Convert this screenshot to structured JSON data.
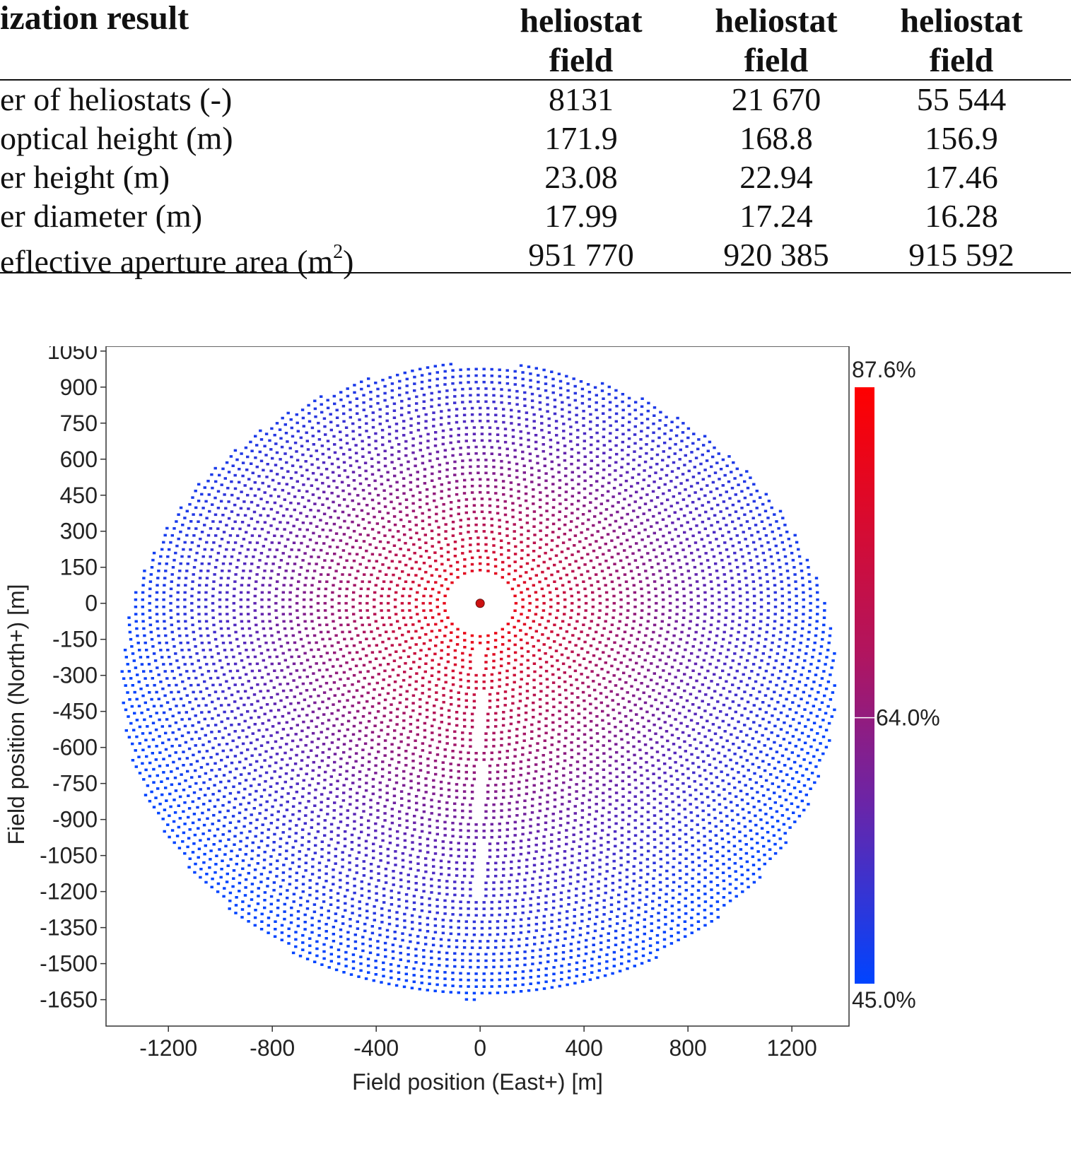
{
  "table": {
    "title": "ization result",
    "columns": [
      {
        "line1": "heliostat",
        "line2": "field"
      },
      {
        "line1": "heliostat",
        "line2": "field"
      },
      {
        "line1": "heliostat",
        "line2": "field"
      }
    ],
    "rows": [
      {
        "label": "er of heliostats (-)",
        "values": [
          "8131",
          "21 670",
          "55 544"
        ]
      },
      {
        "label": " optical height (m)",
        "values": [
          "171.9",
          "168.8",
          "156.9"
        ]
      },
      {
        "label": "er height (m)",
        "values": [
          "23.08",
          "22.94",
          "17.46"
        ]
      },
      {
        "label": "er diameter (m)",
        "values": [
          "17.99",
          "17.24",
          "16.28"
        ]
      },
      {
        "label": "eflective aperture area (m",
        "label_sup": "2",
        "label_after": ")",
        "values": [
          "951 770",
          "920 385",
          "915 592"
        ]
      }
    ]
  },
  "chart_data": {
    "type": "scatter",
    "title": "",
    "xlabel": "Field position (East+) [m]",
    "ylabel": "Field position (North+) [m]",
    "xlim": [
      -1440,
      1420
    ],
    "ylim": [
      -1760,
      1070
    ],
    "xticks": [
      -1200,
      -800,
      -400,
      0,
      400,
      800,
      1200
    ],
    "yticks": [
      1050,
      900,
      750,
      600,
      450,
      300,
      150,
      0,
      -150,
      -300,
      -450,
      -600,
      -750,
      -900,
      -1050,
      -1200,
      -1350,
      -1500,
      -1650
    ],
    "field": {
      "center": [
        0,
        0
      ],
      "outer_boundary_north": 1000,
      "outer_boundary_south": -1650,
      "outer_boundary_east": 1370,
      "outer_boundary_west": -1380,
      "inner_exclusion_radius": 120,
      "access_lane_x": 0,
      "access_lane_y_range": [
        -1300,
        -180
      ]
    },
    "tower": {
      "x": 0,
      "y": 0,
      "color": "#cc1111"
    },
    "colorbar": {
      "label_max": "87.6%",
      "label_mid": "64.0%",
      "label_min": "45.0%",
      "value_max": 87.6,
      "value_mid": 64.0,
      "value_min": 45.0,
      "color_max": "#ff0000",
      "color_min": "#0044ff"
    },
    "grid": false,
    "legend": "colorbar right"
  }
}
